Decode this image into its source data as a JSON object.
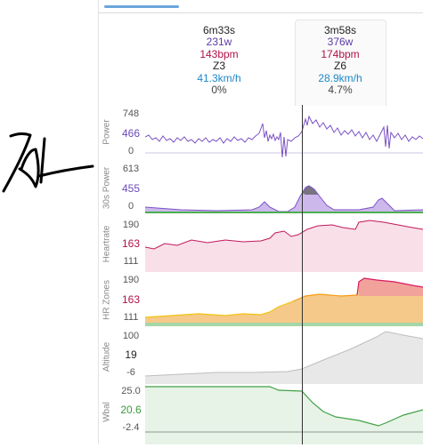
{
  "colors": {
    "power": "#7a52c4",
    "heartrate": "#c2185b",
    "speed": "#1e88c9",
    "altitude": "#9e9e9e",
    "wbal": "#43a047",
    "zone_green": "#4caf50",
    "zone_yellow": "#f1c40f",
    "zone_orange": "#f39c12",
    "zone_red": "#e53935",
    "tab_accent": "#6aa6dc"
  },
  "laps": [
    {
      "duration": "6m33s",
      "power": "231w",
      "heartrate": "143bpm",
      "zone": "Z3",
      "speed": "41.3km/h",
      "grade": "0%"
    },
    {
      "duration": "3m58s",
      "power": "376w",
      "heartrate": "174bpm",
      "zone": "Z6",
      "speed": "28.9km/h",
      "grade": "4.7%"
    }
  ],
  "charts": [
    {
      "label": "Power",
      "ticks": [
        "748",
        "466",
        "0"
      ]
    },
    {
      "label": "30s Power",
      "ticks": [
        "613",
        "455",
        "0"
      ]
    },
    {
      "label": "Heartrate",
      "ticks": [
        "190",
        "163",
        "111"
      ]
    },
    {
      "label": "HR Zones",
      "ticks": [
        "190",
        "163",
        "111"
      ]
    },
    {
      "label": "Altitude",
      "ticks": [
        "100",
        "19",
        "-6"
      ]
    },
    {
      "label": "Wbal",
      "ticks": [
        "25.0",
        "20.6",
        "-2.4"
      ]
    }
  ]
}
